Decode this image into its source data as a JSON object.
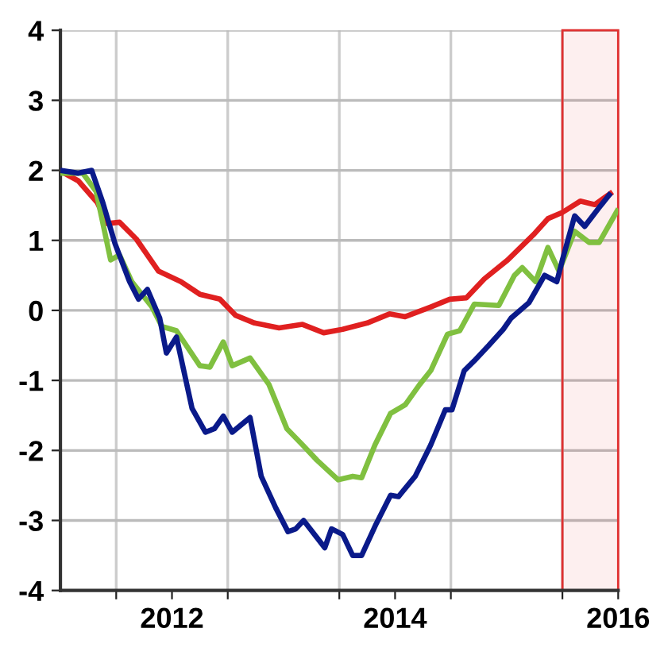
{
  "chart_data": {
    "type": "line",
    "xlim": [
      2011,
      2016
    ],
    "ylim": [
      -4,
      4
    ],
    "yticks": [
      -4,
      -3,
      -2,
      -1,
      0,
      1,
      2,
      3,
      4
    ],
    "xticks": [
      {
        "value": 2011.5,
        "label": null
      },
      2012,
      {
        "value": 2012.5,
        "label": null
      },
      {
        "value": 2013.5,
        "label": null
      },
      2014,
      {
        "value": 2014.5,
        "label": null
      },
      {
        "value": 2015.5,
        "label": null
      },
      2016
    ],
    "grid": true,
    "line_style": "solid",
    "bands": [
      {
        "axis": "x",
        "from": 2015.5,
        "to": 2016,
        "color": "#e03030"
      }
    ],
    "series": [
      {
        "color": "#e02020",
        "x": [
          2011.0,
          2011.16,
          2011.33,
          2011.42,
          2011.53,
          2011.68,
          2011.88,
          2012.08,
          2012.25,
          2012.43,
          2012.57,
          2012.74,
          2012.96,
          2013.17,
          2013.36,
          2013.53,
          2013.75,
          2013.95,
          2014.09,
          2014.32,
          2014.49,
          2014.64,
          2014.8,
          2015.01,
          2015.24,
          2015.37,
          2015.5,
          2015.66,
          2015.79,
          2015.93
        ],
        "values": [
          1.99,
          1.85,
          1.54,
          1.24,
          1.26,
          1.02,
          0.56,
          0.41,
          0.23,
          0.16,
          -0.07,
          -0.18,
          -0.25,
          -0.2,
          -0.32,
          -0.27,
          -0.18,
          -0.05,
          -0.09,
          0.05,
          0.16,
          0.18,
          0.45,
          0.72,
          1.08,
          1.31,
          1.4,
          1.56,
          1.51,
          1.67
        ]
      },
      {
        "color": "#80c040",
        "x": [
          2011.0,
          2011.2,
          2011.32,
          2011.45,
          2011.53,
          2011.64,
          2011.82,
          2011.91,
          2012.04,
          2012.25,
          2012.34,
          2012.46,
          2012.54,
          2012.7,
          2012.87,
          2013.03,
          2013.17,
          2013.3,
          2013.49,
          2013.62,
          2013.7,
          2013.82,
          2013.96,
          2014.09,
          2014.22,
          2014.32,
          2014.47,
          2014.58,
          2014.71,
          2014.93,
          2015.07,
          2015.14,
          2015.26,
          2015.37,
          2015.47,
          2015.61,
          2015.74,
          2015.83,
          2015.99
        ],
        "values": [
          1.96,
          1.96,
          1.7,
          0.72,
          0.79,
          0.41,
          0.05,
          -0.23,
          -0.29,
          -0.79,
          -0.81,
          -0.45,
          -0.79,
          -0.68,
          -1.06,
          -1.69,
          -1.92,
          -2.14,
          -2.42,
          -2.37,
          -2.39,
          -1.92,
          -1.47,
          -1.35,
          -1.06,
          -0.86,
          -0.34,
          -0.29,
          0.09,
          0.07,
          0.5,
          0.61,
          0.41,
          0.9,
          0.56,
          1.13,
          0.97,
          0.97,
          1.42
        ]
      },
      {
        "color": "#0a1a8a",
        "x": [
          2011.0,
          2011.16,
          2011.28,
          2011.38,
          2011.49,
          2011.62,
          2011.7,
          2011.78,
          2011.89,
          2011.95,
          2012.04,
          2012.18,
          2012.3,
          2012.38,
          2012.46,
          2012.54,
          2012.7,
          2012.8,
          2012.93,
          2013.04,
          2013.11,
          2013.18,
          2013.37,
          2013.43,
          2013.53,
          2013.62,
          2013.7,
          2013.83,
          2013.96,
          2014.03,
          2014.18,
          2014.32,
          2014.45,
          2014.51,
          2014.62,
          2014.71,
          2014.84,
          2014.97,
          2015.04,
          2015.2,
          2015.34,
          2015.45,
          2015.5,
          2015.61,
          2015.7,
          2015.83,
          2015.92
        ],
        "values": [
          2.0,
          1.96,
          2.0,
          1.54,
          0.95,
          0.41,
          0.16,
          0.3,
          -0.11,
          -0.61,
          -0.38,
          -1.4,
          -1.74,
          -1.69,
          -1.51,
          -1.74,
          -1.53,
          -2.37,
          -2.82,
          -3.16,
          -3.12,
          -3.0,
          -3.39,
          -3.12,
          -3.2,
          -3.5,
          -3.5,
          -3.05,
          -2.64,
          -2.66,
          -2.37,
          -1.92,
          -1.42,
          -1.42,
          -0.86,
          -0.72,
          -0.5,
          -0.27,
          -0.11,
          0.11,
          0.5,
          0.41,
          0.72,
          1.35,
          1.2,
          1.47,
          1.65
        ]
      }
    ]
  }
}
